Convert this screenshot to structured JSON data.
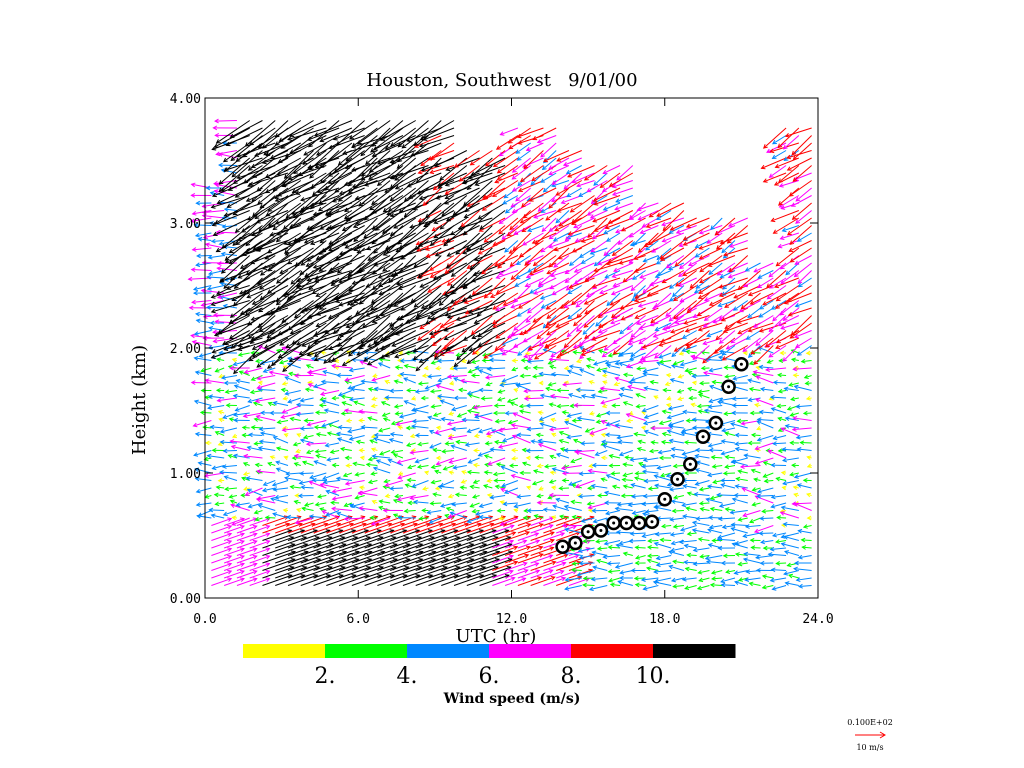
{
  "chart_data": {
    "type": "wind-profile",
    "title": "Houston, Southwest   9/01/00",
    "xlabel": "UTC (hr)",
    "ylabel": "Height (km)",
    "xlim": [
      0,
      24
    ],
    "ylim": [
      0,
      4
    ],
    "x_ticks": [
      0,
      6,
      12,
      18,
      24
    ],
    "x_tick_labels": [
      "0.0",
      "6.0",
      "12.0",
      "18.0",
      "24.0"
    ],
    "y_ticks": [
      0,
      1,
      2,
      3,
      4
    ],
    "y_tick_labels": [
      "0.00",
      "1.00",
      "2.00",
      "3.00",
      "4.00"
    ],
    "mixing_height": {
      "utc": [
        14.0,
        14.5,
        15.0,
        15.5,
        16.0,
        16.5,
        17.0,
        17.5,
        18.0,
        18.5,
        19.0,
        19.5,
        20.0,
        20.5,
        21.0
      ],
      "km": [
        0.41,
        0.44,
        0.53,
        0.54,
        0.6,
        0.6,
        0.6,
        0.61,
        0.79,
        0.95,
        1.07,
        1.29,
        1.4,
        1.69,
        1.87
      ]
    },
    "colorbar": {
      "label": "Wind speed (m/s)",
      "tick_labels": [
        "2.",
        "4.",
        "6.",
        "8.",
        "10."
      ],
      "bins": [
        {
          "range": "0-2",
          "color": "#ffff00"
        },
        {
          "range": "2-4",
          "color": "#00ff00"
        },
        {
          "range": "4-6",
          "color": "#0088ff"
        },
        {
          "range": "6-8",
          "color": "#ff00ff"
        },
        {
          "range": "8-10",
          "color": "#ff0000"
        },
        {
          "range": ">10",
          "color": "#000000"
        }
      ]
    },
    "reference_vector": {
      "value_label": "0.100E+02",
      "unit_label": "10 m/s",
      "speed": 10,
      "color": "#ff0000"
    },
    "profiles": {
      "utc_start": 0.25,
      "utc_step": 0.5,
      "count": 48,
      "level_start_km": 0.1,
      "level_step_km": 0.06
    }
  }
}
